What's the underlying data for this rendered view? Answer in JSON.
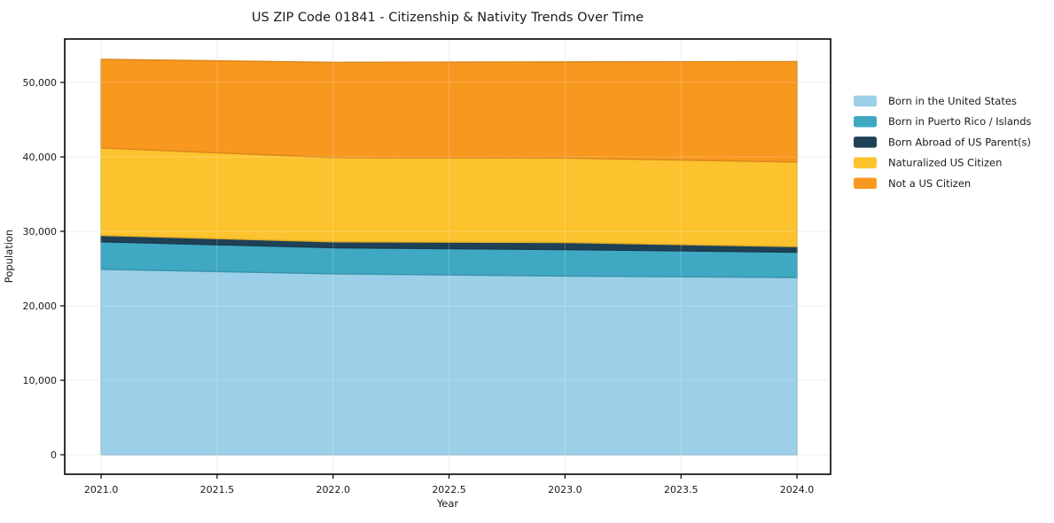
{
  "chart_data": {
    "type": "area",
    "stacked": true,
    "title": "US ZIP Code 01841 - Citizenship & Nativity Trends Over Time",
    "xlabel": "Year",
    "ylabel": "Population",
    "x": [
      2021,
      2022,
      2023,
      2024
    ],
    "series": [
      {
        "name": "Born in the United States",
        "color": "#9CD0E8",
        "values": [
          24900,
          24300,
          24000,
          23800
        ]
      },
      {
        "name": "Born in Puerto Rico / Islands",
        "color": "#3FA8C3",
        "values": [
          3700,
          3500,
          3550,
          3400
        ]
      },
      {
        "name": "Born Abroad of US Parent(s)",
        "color": "#1F4156",
        "values": [
          850,
          800,
          950,
          750
        ]
      },
      {
        "name": "Naturalized US Citizen",
        "color": "#FDC32E",
        "values": [
          11750,
          11300,
          11350,
          11350
        ]
      },
      {
        "name": "Not a US Citizen",
        "color": "#F8981F",
        "values": [
          11900,
          12800,
          12900,
          13500
        ]
      }
    ],
    "xticks": [
      2021.0,
      2021.5,
      2022.0,
      2022.5,
      2023.0,
      2023.5,
      2024.0
    ],
    "yticks": [
      0,
      10000,
      20000,
      30000,
      40000,
      50000
    ],
    "xlim": [
      2020.843,
      2024.145
    ],
    "ylim": [
      -2619,
      55831
    ],
    "grid": true,
    "legend_position": "right"
  }
}
